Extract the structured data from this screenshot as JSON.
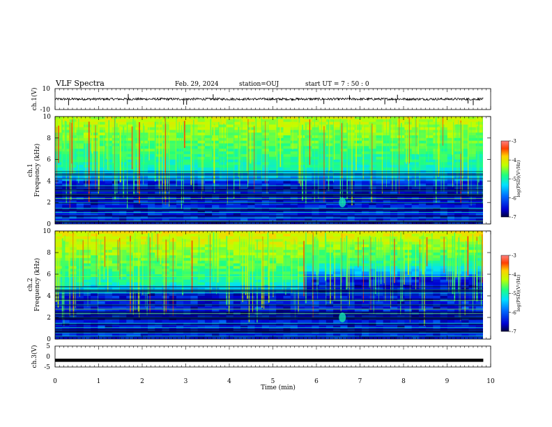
{
  "header": {
    "title": "VLF Spectra",
    "date": "Feb. 29, 2024",
    "station": "station=OUJ",
    "start": "start UT =  7 : 50 : 0"
  },
  "chart_data": [
    {
      "type": "line",
      "name": "ch1-waveform",
      "ylabel": "ch.1(V)",
      "ylim": [
        -10,
        10
      ],
      "yticks": [
        "10",
        "-10"
      ],
      "xlim": [
        0,
        10
      ],
      "baseline": 0,
      "spikes_min": [
        0.31,
        1.66,
        1.68,
        2.95,
        3.02,
        3.63,
        5.09,
        6.17,
        6.76,
        7.57,
        7.83,
        7.86,
        9.48,
        9.6
      ],
      "grid": false
    },
    {
      "type": "heatmap",
      "name": "ch1-spectrogram",
      "ylabel": "ch.1\nFrequency (kHz)",
      "ylim": [
        0,
        10
      ],
      "yticks": [
        "0",
        "2",
        "4",
        "6",
        "8",
        "10"
      ],
      "xlim": [
        0,
        9.83
      ],
      "colorbar": {
        "label": "log(PSD)(V²/Hz)",
        "range": [
          -7,
          -3
        ],
        "ticks": [
          "-3",
          "-4",
          "-5",
          "-6",
          "-7"
        ]
      }
    },
    {
      "type": "heatmap",
      "name": "ch2-spectrogram",
      "ylabel": "ch.2\nFrequency (kHz)",
      "ylim": [
        0,
        10
      ],
      "yticks": [
        "0",
        "2",
        "4",
        "6",
        "8",
        "10"
      ],
      "xlim": [
        0,
        9.83
      ],
      "colorbar": {
        "label": "log(PSD)(V²/Hz)",
        "range": [
          -7,
          -3
        ],
        "ticks": [
          "-3",
          "-4",
          "-5",
          "-6",
          "-7"
        ]
      }
    },
    {
      "type": "line",
      "name": "ch3-waveform",
      "ylabel": "ch.3(V)",
      "ylim": [
        -5,
        5
      ],
      "yticks": [
        "5",
        "0",
        "-5"
      ],
      "xlim": [
        0,
        10
      ],
      "xlabel": "Time (min)",
      "xticks": [
        "0",
        "1",
        "2",
        "3",
        "4",
        "5",
        "6",
        "7",
        "8",
        "9",
        "10"
      ],
      "baseline": -1.7,
      "grid": false
    }
  ]
}
